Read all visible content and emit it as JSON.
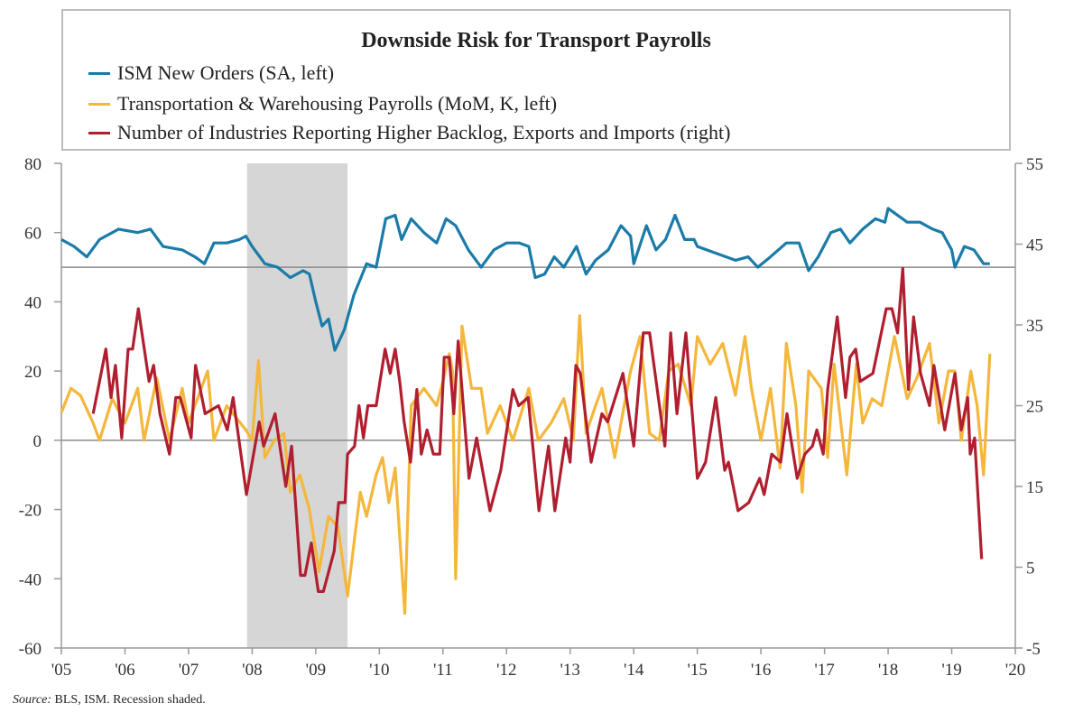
{
  "chart_data": {
    "type": "line",
    "title": "Downside Risk for Transport Payrolls",
    "source_label": "Source:",
    "source_text": "BLS, ISM. Recession shaded.",
    "x_ticks": [
      "'05",
      "'06",
      "'07",
      "'08",
      "'09",
      "'10",
      "'11",
      "'12",
      "'13",
      "'14",
      "'15",
      "'16",
      "'17",
      "'18",
      "'19",
      "'20"
    ],
    "xlim": [
      2005,
      2020
    ],
    "y_left": {
      "lim": [
        -60,
        80
      ],
      "ticks": [
        "80",
        "60",
        "40",
        "20",
        "0",
        "-20",
        "-40",
        "-60"
      ]
    },
    "y_right": {
      "lim": [
        -5,
        55
      ],
      "ticks": [
        "55",
        "45",
        "35",
        "25",
        "15",
        "5",
        "-5"
      ]
    },
    "reference_lines_left": [
      50,
      0
    ],
    "recession": [
      2007.92,
      2009.5
    ],
    "grid": false,
    "legend": "top",
    "series": [
      {
        "name": "ISM New Orders (SA, left)",
        "axis": "left",
        "color": "#1b7ba8",
        "x": [
          2005.0,
          2005.2,
          2005.4,
          2005.6,
          2005.9,
          2006.2,
          2006.4,
          2006.6,
          2006.9,
          2007.1,
          2007.25,
          2007.4,
          2007.6,
          2007.8,
          2007.9,
          2008.0,
          2008.2,
          2008.4,
          2008.6,
          2008.8,
          2008.9,
          2009.0,
          2009.1,
          2009.2,
          2009.3,
          2009.45,
          2009.6,
          2009.8,
          2009.95,
          2010.1,
          2010.25,
          2010.35,
          2010.5,
          2010.7,
          2010.9,
          2011.05,
          2011.2,
          2011.4,
          2011.6,
          2011.8,
          2012.0,
          2012.2,
          2012.35,
          2012.45,
          2012.6,
          2012.75,
          2012.9,
          2013.1,
          2013.25,
          2013.4,
          2013.6,
          2013.8,
          2013.95,
          2014.0,
          2014.2,
          2014.35,
          2014.5,
          2014.65,
          2014.8,
          2014.95,
          2015.0,
          2015.3,
          2015.6,
          2015.8,
          2015.95,
          2016.15,
          2016.4,
          2016.6,
          2016.75,
          2016.9,
          2017.1,
          2017.25,
          2017.4,
          2017.6,
          2017.8,
          2017.95,
          2018.0,
          2018.3,
          2018.5,
          2018.7,
          2018.85,
          2019.0,
          2019.05,
          2019.2,
          2019.35,
          2019.5,
          2019.6
        ],
        "y": [
          58,
          56,
          53,
          58,
          61,
          60,
          61,
          56,
          55,
          53,
          51,
          57,
          57,
          58,
          59,
          56,
          51,
          50,
          47,
          49,
          48,
          40,
          33,
          35,
          26,
          32,
          42,
          51,
          50,
          64,
          65,
          58,
          64,
          60,
          57,
          64,
          62,
          55,
          50,
          55,
          57,
          57,
          56,
          47,
          48,
          53,
          50,
          56,
          48,
          52,
          55,
          62,
          59,
          51,
          62,
          55,
          58,
          65,
          58,
          58,
          56,
          54,
          52,
          53,
          50,
          53,
          57,
          57,
          49,
          53,
          60,
          61,
          57,
          61,
          64,
          63,
          67,
          63,
          63,
          61,
          60,
          55,
          50,
          56,
          55,
          51,
          51
        ]
      },
      {
        "name": "Transportation & Warehousing Payrolls (MoM, K, left)",
        "axis": "left",
        "color": "#f4b73c",
        "x": [
          2005.0,
          2005.15,
          2005.3,
          2005.5,
          2005.6,
          2005.8,
          2006.0,
          2006.2,
          2006.3,
          2006.5,
          2006.7,
          2006.9,
          2007.0,
          2007.3,
          2007.4,
          2007.6,
          2007.9,
          2008.0,
          2008.1,
          2008.2,
          2008.35,
          2008.5,
          2008.6,
          2008.75,
          2008.9,
          2009.05,
          2009.2,
          2009.35,
          2009.5,
          2009.6,
          2009.7,
          2009.8,
          2009.95,
          2010.05,
          2010.15,
          2010.25,
          2010.4,
          2010.5,
          2010.7,
          2010.9,
          2011.0,
          2011.1,
          2011.15,
          2011.2,
          2011.3,
          2011.45,
          2011.6,
          2011.7,
          2011.9,
          2012.1,
          2012.35,
          2012.5,
          2012.7,
          2012.9,
          2013.05,
          2013.15,
          2013.25,
          2013.4,
          2013.5,
          2013.7,
          2013.85,
          2013.95,
          2014.1,
          2014.25,
          2014.4,
          2014.55,
          2014.7,
          2014.9,
          2015.0,
          2015.2,
          2015.4,
          2015.6,
          2015.75,
          2015.85,
          2016.0,
          2016.15,
          2016.3,
          2016.4,
          2016.55,
          2016.65,
          2016.75,
          2016.95,
          2017.05,
          2017.15,
          2017.35,
          2017.5,
          2017.6,
          2017.75,
          2017.9,
          2018.1,
          2018.3,
          2018.45,
          2018.65,
          2018.8,
          2018.95,
          2019.05,
          2019.15,
          2019.3,
          2019.4,
          2019.5,
          2019.6
        ],
        "y": [
          8,
          15,
          13,
          5,
          0,
          12,
          5,
          15,
          0,
          18,
          0,
          15,
          5,
          20,
          0,
          10,
          3,
          0,
          23,
          -5,
          0,
          2,
          -15,
          -10,
          -20,
          -38,
          -22,
          -25,
          -45,
          -30,
          -15,
          -22,
          -10,
          -5,
          -18,
          -8,
          -50,
          10,
          15,
          10,
          17,
          25,
          20,
          -40,
          33,
          15,
          15,
          2,
          10,
          0,
          15,
          0,
          5,
          12,
          0,
          36,
          2,
          10,
          15,
          -5,
          10,
          20,
          30,
          2,
          0,
          20,
          22,
          10,
          30,
          22,
          28,
          13,
          30,
          15,
          0,
          15,
          -8,
          28,
          10,
          -15,
          20,
          15,
          -5,
          22,
          -10,
          22,
          5,
          12,
          10,
          30,
          12,
          18,
          28,
          5,
          20,
          20,
          0,
          20,
          10,
          -10,
          25
        ]
      },
      {
        "name": "Number of Industries Reporting Higher Backlog, Exports and Imports (right)",
        "axis": "right",
        "color": "#b01f30",
        "x": [
          2005.5,
          2005.7,
          2005.78,
          2005.85,
          2005.95,
          2006.05,
          2006.12,
          2006.21,
          2006.38,
          2006.45,
          2006.55,
          2006.7,
          2006.8,
          2006.87,
          2007.04,
          2007.11,
          2007.26,
          2007.47,
          2007.61,
          2007.7,
          2007.91,
          2008.11,
          2008.18,
          2008.36,
          2008.53,
          2008.62,
          2008.76,
          2008.83,
          2008.93,
          2009.04,
          2009.12,
          2009.29,
          2009.36,
          2009.46,
          2009.5,
          2009.61,
          2009.68,
          2009.75,
          2009.82,
          2009.95,
          2010.09,
          2010.17,
          2010.25,
          2010.32,
          2010.39,
          2010.49,
          2010.59,
          2010.66,
          2010.75,
          2010.85,
          2010.95,
          2011.02,
          2011.1,
          2011.17,
          2011.24,
          2011.41,
          2011.53,
          2011.74,
          2011.91,
          2012.1,
          2012.19,
          2012.34,
          2012.51,
          2012.66,
          2012.76,
          2012.93,
          2013.0,
          2013.09,
          2013.16,
          2013.33,
          2013.5,
          2013.59,
          2013.83,
          2014.0,
          2014.15,
          2014.25,
          2014.49,
          2014.58,
          2014.68,
          2014.82,
          2015.0,
          2015.13,
          2015.29,
          2015.43,
          2015.49,
          2015.64,
          2015.81,
          2015.98,
          2016.05,
          2016.17,
          2016.31,
          2016.41,
          2016.57,
          2016.69,
          2016.81,
          2016.88,
          2016.98,
          2017.05,
          2017.2,
          2017.33,
          2017.4,
          2017.49,
          2017.56,
          2017.76,
          2017.97,
          2018.06,
          2018.15,
          2018.23,
          2018.32,
          2018.4,
          2018.51,
          2018.65,
          2018.72,
          2018.89,
          2019.05,
          2019.15,
          2019.25,
          2019.29,
          2019.36,
          2019.47
        ],
        "y": [
          24,
          32,
          26,
          30,
          21,
          32,
          32,
          37,
          28,
          30,
          24,
          19,
          26,
          26,
          21,
          30,
          24,
          25,
          22,
          26,
          14,
          23,
          20,
          24,
          15,
          20,
          4,
          4,
          8,
          2,
          2,
          7,
          13,
          13,
          19,
          20,
          25,
          21,
          25,
          25,
          32,
          29,
          32,
          28,
          23,
          18,
          27,
          19,
          22,
          19,
          19,
          31,
          31,
          24,
          33,
          16,
          21,
          12,
          17,
          27,
          25,
          26,
          12,
          20,
          12,
          21,
          18,
          30,
          29,
          18,
          24,
          23,
          29,
          20,
          34,
          34,
          20,
          34,
          24,
          34,
          16,
          18,
          26,
          17,
          18,
          12,
          13,
          16,
          14,
          19,
          18,
          24,
          16,
          19,
          20,
          22,
          19,
          27,
          36,
          26,
          31,
          32,
          28,
          29,
          37,
          37,
          34,
          42,
          27,
          36,
          29,
          25,
          30,
          22,
          29,
          22,
          26,
          19,
          21,
          6
        ]
      }
    ]
  }
}
